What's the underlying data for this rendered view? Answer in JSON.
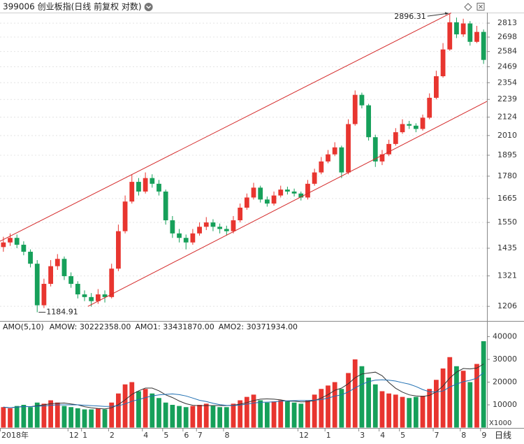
{
  "header": {
    "title": "399006 创业板指(日线 前复权 对数)"
  },
  "chart_data": [
    {
      "type": "candlestick",
      "open": [
        1440,
        1460,
        1480,
        1450,
        1420,
        1370,
        1210,
        1290,
        1360,
        1390,
        1320,
        1290,
        1250,
        1240,
        1225,
        1250,
        1240,
        1350,
        1510,
        1650,
        1750,
        1700,
        1770,
        1740,
        1700,
        1560,
        1500,
        1480,
        1460,
        1500,
        1530,
        1550,
        1530,
        1520,
        1510,
        1560,
        1620,
        1670,
        1720,
        1660,
        1640,
        1680,
        1710,
        1700,
        1690,
        1670,
        1740,
        1800,
        1860,
        1900,
        1940,
        1800,
        2080,
        2270,
        2200,
        2000,
        1860,
        1900,
        1960,
        2030,
        2080,
        2070,
        2050,
        2120,
        2250,
        2400,
        2600,
        2820,
        2720,
        2810,
        2660,
        2740
      ],
      "high": [
        1485,
        1500,
        1495,
        1465,
        1430,
        1385,
        1310,
        1385,
        1410,
        1400,
        1335,
        1300,
        1265,
        1255,
        1270,
        1265,
        1370,
        1540,
        1680,
        1790,
        1770,
        1800,
        1790,
        1760,
        1710,
        1580,
        1520,
        1495,
        1520,
        1550,
        1575,
        1565,
        1545,
        1535,
        1580,
        1640,
        1690,
        1745,
        1730,
        1675,
        1700,
        1730,
        1725,
        1715,
        1700,
        1760,
        1820,
        1885,
        1925,
        1970,
        1950,
        2110,
        2300,
        2285,
        2210,
        2015,
        1925,
        1985,
        2055,
        2110,
        2100,
        2085,
        2140,
        2280,
        2440,
        2650,
        2896.31,
        2860,
        2850,
        2830,
        2790,
        2760
      ],
      "low": [
        1420,
        1445,
        1435,
        1405,
        1355,
        1184.91,
        1200,
        1280,
        1345,
        1305,
        1275,
        1235,
        1225,
        1205,
        1215,
        1220,
        1235,
        1340,
        1500,
        1640,
        1680,
        1690,
        1720,
        1680,
        1540,
        1480,
        1460,
        1430,
        1450,
        1490,
        1515,
        1510,
        1500,
        1490,
        1500,
        1550,
        1610,
        1660,
        1645,
        1625,
        1630,
        1670,
        1685,
        1675,
        1655,
        1660,
        1730,
        1790,
        1850,
        1890,
        1770,
        1790,
        2070,
        2180,
        1980,
        1830,
        1840,
        1890,
        1950,
        2020,
        2050,
        2030,
        2040,
        2110,
        2240,
        2390,
        2590,
        2690,
        2700,
        2630,
        2650,
        2490
      ],
      "close": [
        1460,
        1480,
        1450,
        1420,
        1370,
        1210,
        1290,
        1360,
        1390,
        1320,
        1290,
        1250,
        1240,
        1225,
        1250,
        1240,
        1350,
        1510,
        1650,
        1750,
        1700,
        1770,
        1740,
        1700,
        1560,
        1500,
        1480,
        1460,
        1500,
        1530,
        1550,
        1530,
        1520,
        1510,
        1560,
        1620,
        1670,
        1720,
        1660,
        1640,
        1680,
        1710,
        1700,
        1690,
        1670,
        1740,
        1800,
        1860,
        1900,
        1940,
        1800,
        2080,
        2270,
        2200,
        2000,
        1860,
        1900,
        1960,
        2030,
        2080,
        2070,
        2050,
        2120,
        2250,
        2400,
        2600,
        2820,
        2720,
        2810,
        2660,
        2740,
        2520
      ],
      "ylim": [
        1157,
        2903
      ],
      "yticks": [
        1206,
        1321,
        1435,
        1550,
        1665,
        1780,
        1895,
        2010,
        2124,
        2239,
        2354,
        2469,
        2584,
        2698,
        2813
      ],
      "log_scale": true,
      "grid": true,
      "up_color": "#e8352f",
      "down_color": "#16a05a",
      "x_labels": [
        {
          "value": 0,
          "label": "2018年"
        },
        {
          "value": 10,
          "label": "12"
        },
        {
          "value": 12,
          "label": "1"
        },
        {
          "value": 16,
          "label": "2"
        },
        {
          "value": 21,
          "label": "4"
        },
        {
          "value": 24,
          "label": "5"
        },
        {
          "value": 27,
          "label": "6"
        },
        {
          "value": 29,
          "label": "7"
        },
        {
          "value": 33,
          "label": "8"
        },
        {
          "value": 44,
          "label": "12"
        },
        {
          "value": 48,
          "label": "1"
        },
        {
          "value": 53,
          "label": "3"
        },
        {
          "value": 56,
          "label": "4"
        },
        {
          "value": 59,
          "label": "5"
        },
        {
          "value": 64,
          "label": "7"
        },
        {
          "value": 68,
          "label": "8"
        },
        {
          "value": 71,
          "label": "9"
        }
      ],
      "channels": [
        {
          "x": [
            -0.5,
            66.2
          ],
          "y": [
            1465,
            2900
          ],
          "color": "#d42a2a"
        },
        {
          "x": [
            12.5,
            72.1
          ],
          "y": [
            1206,
            2240
          ],
          "color": "#d42a2a"
        }
      ],
      "annotations": [
        {
          "x": 66,
          "value": 2896.31
        },
        {
          "x": 5,
          "value": 1184.91
        }
      ]
    },
    {
      "type": "bar",
      "values": [
        9000,
        8500,
        9500,
        10000,
        9000,
        11000,
        10500,
        12000,
        11000,
        9500,
        9000,
        8500,
        8000,
        8000,
        8500,
        8000,
        11000,
        15000,
        19000,
        20000,
        16000,
        17000,
        15000,
        13000,
        11000,
        10000,
        9500,
        9000,
        9500,
        10000,
        10500,
        9500,
        9000,
        9000,
        10500,
        12000,
        13500,
        14500,
        12000,
        11000,
        11500,
        12000,
        11500,
        11000,
        10500,
        12000,
        14500,
        17000,
        18500,
        20000,
        17000,
        24000,
        30000,
        27000,
        22000,
        19000,
        16000,
        15000,
        14500,
        13500,
        13000,
        13500,
        14000,
        17000,
        21000,
        26000,
        31000,
        27000,
        25000,
        20000,
        28000,
        38000
      ],
      "ylim": [
        0,
        46000
      ],
      "yticks": [
        10000,
        20000,
        30000,
        40000
      ],
      "indicator": "AMO(5,10)",
      "legend": [
        {
          "text": "AMOW: 30222358.00",
          "color": "#222222"
        },
        {
          "text": "AMO1: 33431870.00",
          "color": "#222222"
        },
        {
          "text": "AMO2: 30371934.00",
          "color": "#1f6fb2"
        }
      ],
      "series": [
        {
          "color": "#333333",
          "values": [
            9000,
            8750,
            9000,
            9250,
            9200,
            9600,
            10000,
            10500,
            10700,
            10800,
            10400,
            10000,
            9200,
            8700,
            8400,
            8200,
            8700,
            10100,
            12200,
            14600,
            16200,
            17400,
            17400,
            16200,
            14400,
            13200,
            11700,
            10500,
            9800,
            9600,
            9700,
            9700,
            9700,
            9700,
            9800,
            10300,
            11000,
            11900,
            12500,
            12600,
            12500,
            12200,
            11600,
            11600,
            11300,
            11400,
            11900,
            13000,
            14500,
            16400,
            17400,
            19300,
            21900,
            23600,
            24000,
            24400,
            22800,
            19800,
            17300,
            15600,
            14400,
            13900,
            13700,
            14200,
            15700,
            18300,
            21800,
            24400,
            26000,
            25800,
            26200,
            28000
          ]
        },
        {
          "color": "#1f6fb2",
          "values": [
            9000,
            8750,
            9000,
            9250,
            9200,
            9400,
            9500,
            9800,
            10000,
            10000,
            10000,
            10000,
            9850,
            9650,
            9500,
            9300,
            9350,
            9600,
            10400,
            11600,
            12300,
            13200,
            13900,
            14400,
            14600,
            14800,
            14500,
            13900,
            13000,
            12000,
            11450,
            10700,
            10100,
            9750,
            9700,
            9900,
            10300,
            10800,
            11100,
            11200,
            11300,
            11600,
            11750,
            11850,
            11900,
            11950,
            12050,
            12300,
            12950,
            13850,
            14400,
            15700,
            17450,
            19050,
            20200,
            20900,
            21050,
            20850,
            20450,
            19750,
            19100,
            18050,
            16750,
            15750,
            15650,
            16100,
            17850,
            19100,
            20200,
            20800,
            21750,
            24200
          ]
        }
      ],
      "unit_label": "X1000",
      "period_label": "日线"
    }
  ]
}
